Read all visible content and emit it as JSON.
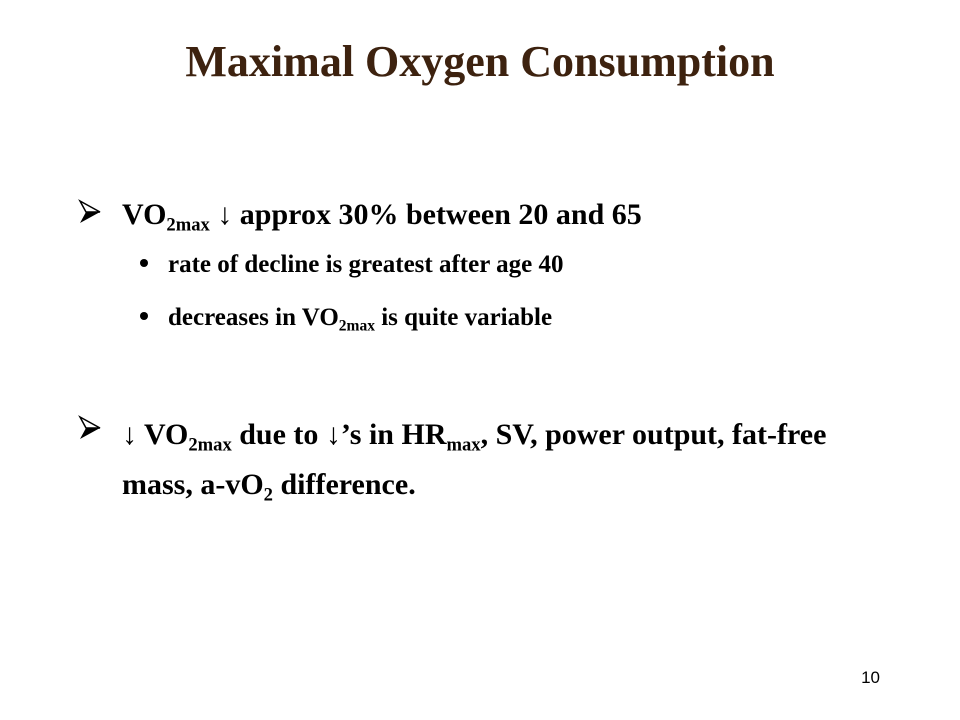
{
  "title": "Maximal Oxygen Consumption",
  "items": [
    {
      "runs": [
        {
          "text": "VO"
        },
        {
          "text": "2max",
          "sub": true
        },
        {
          "text": " ↓ approx 30% between 20 and 65"
        }
      ],
      "subitems": [
        {
          "runs": [
            {
              "text": "rate of decline is greatest after age 40"
            }
          ]
        },
        {
          "runs": [
            {
              "text": "decreases in VO"
            },
            {
              "text": "2max",
              "sub": true
            },
            {
              "text": " is quite variable"
            }
          ]
        }
      ]
    },
    {
      "runs": [
        {
          "text": "↓ VO"
        },
        {
          "text": "2max",
          "sub": true
        },
        {
          "text": " due to ↓’s in HR"
        },
        {
          "text": "max",
          "sub": true
        },
        {
          "text": ", SV, power output, fat-free mass, a-vO"
        },
        {
          "text": "2",
          "sub": true
        },
        {
          "text": " difference."
        }
      ],
      "subitems": []
    }
  ],
  "page_number": "10"
}
